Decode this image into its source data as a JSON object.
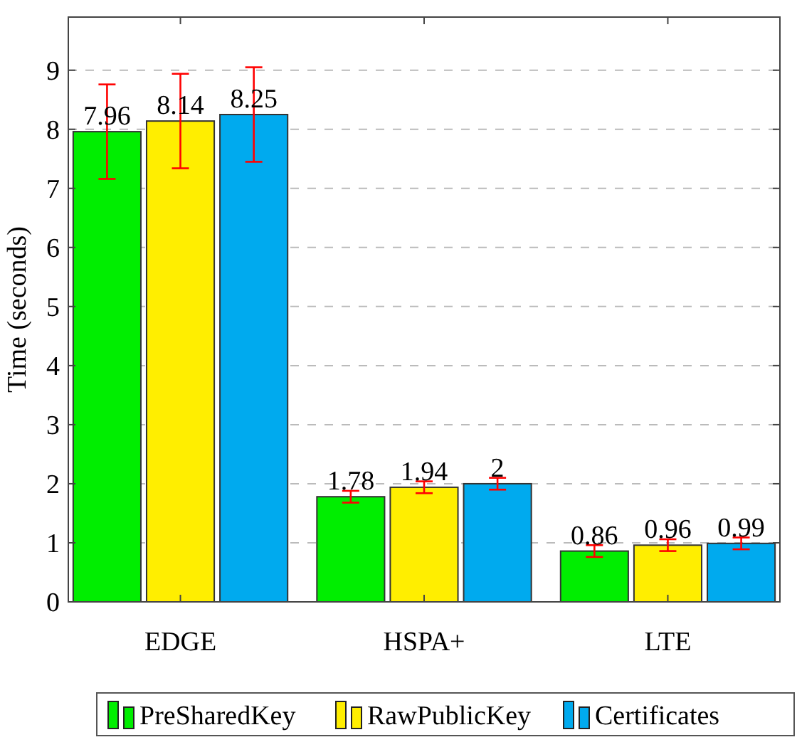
{
  "chart_data": {
    "type": "bar",
    "ylabel": "Time (seconds)",
    "categories": [
      "EDGE",
      "HSPA+",
      "LTE"
    ],
    "series": [
      {
        "name": "PreSharedKey",
        "color": "#00ee00",
        "values": [
          7.96,
          1.78,
          0.86
        ],
        "errors": [
          0.8,
          0.1,
          0.1
        ]
      },
      {
        "name": "RawPublicKey",
        "color": "#ffee00",
        "values": [
          8.14,
          1.94,
          0.96
        ],
        "errors": [
          0.8,
          0.1,
          0.1
        ]
      },
      {
        "name": "Certificates",
        "color": "#00aaee",
        "values": [
          8.25,
          2,
          0.99
        ],
        "errors": [
          0.8,
          0.1,
          0.1
        ]
      }
    ],
    "ylim": [
      0,
      9.9
    ],
    "yticks": [
      0,
      1,
      2,
      3,
      4,
      5,
      6,
      7,
      8,
      9
    ],
    "grid": "y",
    "data_labels": true,
    "legend": "bottom"
  }
}
